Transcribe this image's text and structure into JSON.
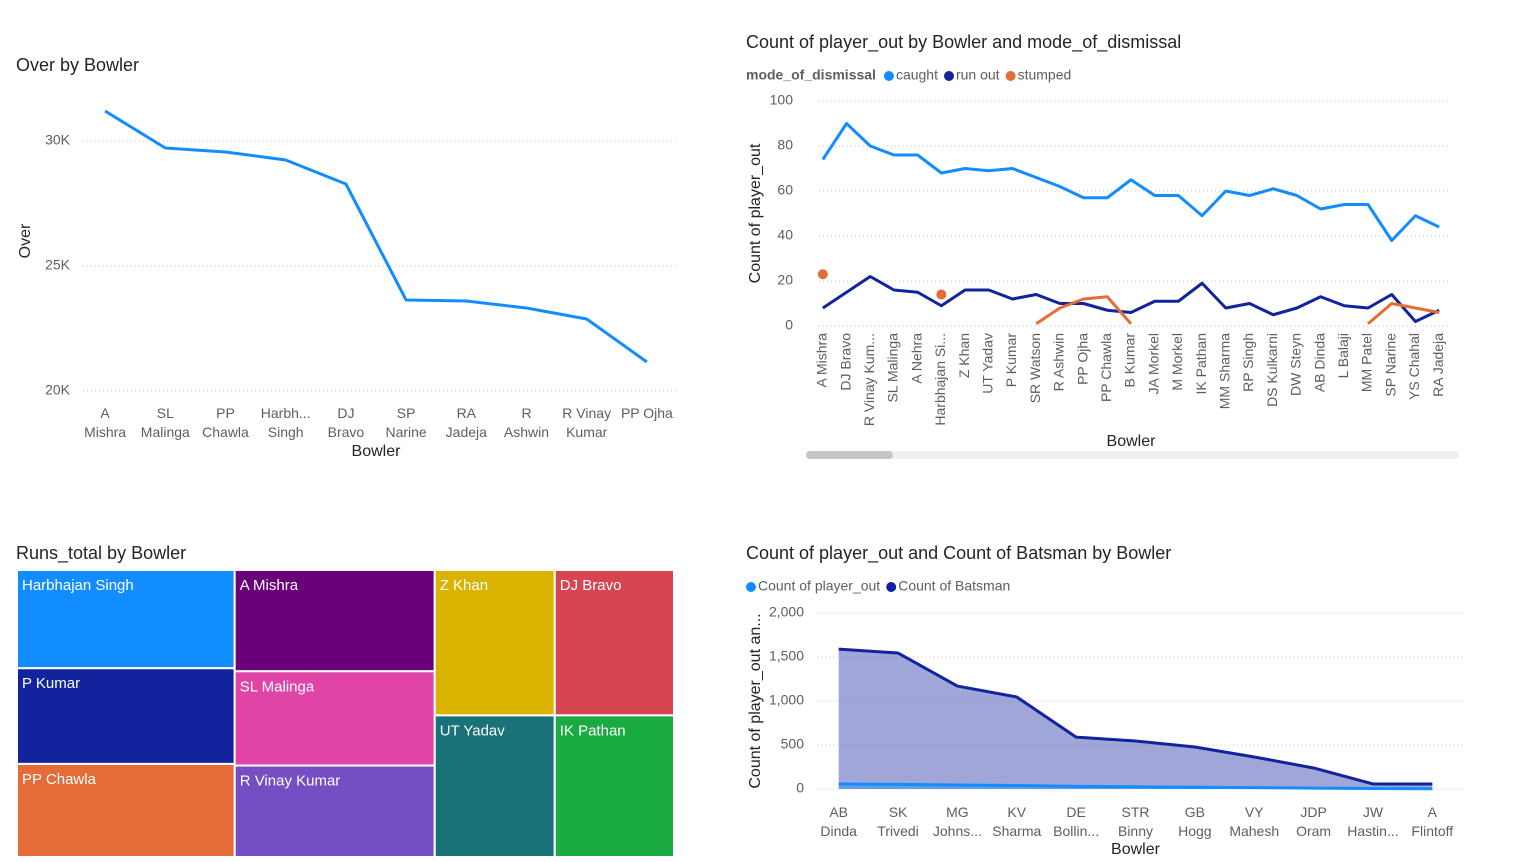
{
  "chart_data": [
    {
      "type": "line",
      "title": "Over by Bowler",
      "x_label": "Bowler",
      "y_label": "Over",
      "categories": [
        "A Mishra",
        "SL Malinga",
        "PP Chawla",
        "Harbh... Singh",
        "DJ Bravo",
        "SP Narine",
        "RA Jadeja",
        "R Ashwin",
        "R Vinay Kumar",
        "PP Ojha"
      ],
      "series": [
        {
          "name": "Over",
          "color": "#118dff",
          "values": [
            31200,
            29720,
            29560,
            29240,
            28280,
            23640,
            23600,
            23320,
            22880,
            21160
          ]
        }
      ],
      "ylim": [
        20000,
        32000
      ],
      "yticks": [
        {
          "value": 20000,
          "label": "20K"
        },
        {
          "value": 25000,
          "label": "25K"
        },
        {
          "value": 30000,
          "label": "30K"
        }
      ],
      "grid": true
    },
    {
      "type": "line",
      "title": "Count of player_out by Bowler and mode_of_dismissal",
      "x_label": "Bowler",
      "y_label": "Count of player_out",
      "legend_title": "mode_of_dismissal",
      "categories": [
        "A Mishra",
        "DJ Bravo",
        "R Vinay Kum...",
        "SL Malinga",
        "A Nehra",
        "Harbhajan Si...",
        "Z Khan",
        "UT Yadav",
        "P Kumar",
        "SR Watson",
        "R Ashwin",
        "PP Ojha",
        "PP Chawla",
        "B Kumar",
        "JA Morkel",
        "M Morkel",
        "IK Pathan",
        "MM Sharma",
        "RP Singh",
        "DS Kulkarni",
        "DW Steyn",
        "AB Dinda",
        "L Balaji",
        "MM Patel",
        "SP Narine",
        "YS Chahal",
        "RA Jadeja"
      ],
      "series": [
        {
          "name": "caught",
          "color": "#118dff",
          "values": [
            74,
            90,
            80,
            76,
            76,
            68,
            70,
            69,
            70,
            66,
            62,
            57,
            57,
            65,
            58,
            58,
            49,
            60,
            58,
            61,
            58,
            52,
            54,
            54,
            38,
            49,
            44
          ]
        },
        {
          "name": "run out",
          "color": "#12239e",
          "values": [
            8,
            15,
            22,
            16,
            15,
            9,
            16,
            16,
            12,
            14,
            10,
            10,
            7,
            6,
            11,
            11,
            19,
            8,
            10,
            5,
            8,
            13,
            9,
            8,
            14,
            2,
            7
          ]
        },
        {
          "name": "stumped",
          "color": "#e66c37",
          "values": [
            23,
            null,
            null,
            null,
            null,
            14,
            null,
            null,
            null,
            1,
            8,
            12,
            13,
            1,
            null,
            null,
            null,
            null,
            null,
            null,
            null,
            null,
            null,
            1,
            10,
            8,
            6
          ]
        }
      ],
      "ylim": [
        0,
        100
      ],
      "yticks": [
        0,
        20,
        40,
        60,
        80,
        100
      ],
      "grid": true
    },
    {
      "type": "treemap",
      "title": "Runs_total by Bowler",
      "categories": [
        "Harbhajan Singh",
        "P Kumar",
        "PP Chawla",
        "A Mishra",
        "SL Malinga",
        "R Vinay Kumar",
        "Z Khan",
        "UT Yadav",
        "DJ Bravo",
        "IK Pathan"
      ],
      "values": [
        3800,
        3700,
        3600,
        3600,
        3350,
        3250,
        3100,
        3020,
        3080,
        3000
      ],
      "colors": [
        "#118dff",
        "#12239e",
        "#e66c37",
        "#6b007b",
        "#e044a7",
        "#744ec2",
        "#d9b300",
        "#197278",
        "#d64550",
        "#1aab40"
      ]
    },
    {
      "type": "area",
      "title": "Count of player_out and Count of Batsman by Bowler",
      "x_label": "Bowler",
      "y_label": "Count of player_out an...",
      "categories": [
        "AB Dinda",
        "SK Trivedi",
        "MG Johns...",
        "KV Sharma",
        "DE Bollin...",
        "STR Binny",
        "GB Hogg",
        "VY Mahesh",
        "JDP Oram",
        "JW Hastin...",
        "A Flintoff"
      ],
      "series": [
        {
          "name": "Count of player_out",
          "color": "#118dff",
          "values": [
            57,
            52,
            45,
            40,
            30,
            25,
            20,
            15,
            10,
            5,
            3
          ]
        },
        {
          "name": "Count of Batsman",
          "color": "#12239e",
          "values": [
            1590,
            1545,
            1170,
            1045,
            590,
            545,
            477,
            364,
            239,
            57,
            57
          ]
        }
      ],
      "ylim": [
        0,
        2000
      ],
      "yticks": [
        0,
        500,
        {
          "value": 1000,
          "label": "1,000"
        },
        {
          "value": 1500,
          "label": "1,500"
        },
        {
          "value": 2000,
          "label": "2,000"
        }
      ],
      "grid": true
    }
  ]
}
